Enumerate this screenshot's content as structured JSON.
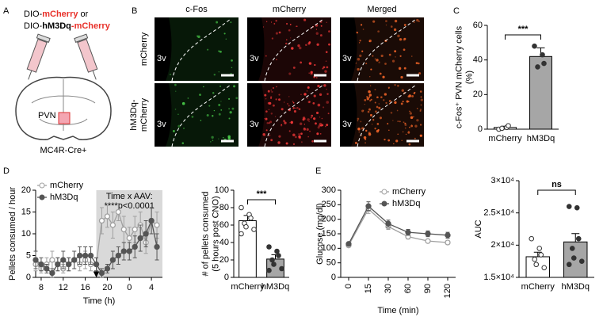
{
  "panel_labels": [
    "A",
    "B",
    "C",
    "D",
    "E"
  ],
  "schematic": {
    "lines": [
      [
        {
          "text": "DIO-",
          "color": "#000000"
        },
        {
          "text": "mCherry",
          "color": "#e8312a",
          "bold": true
        },
        {
          "text": " or",
          "color": "#000000"
        }
      ],
      [
        {
          "text": "DIO-",
          "color": "#000000"
        },
        {
          "text": "hM3Dq",
          "color": "#000000",
          "bold": true
        },
        {
          "text": "-mCherry",
          "color": "#e8312a",
          "bold": true
        }
      ]
    ],
    "region": "PVN",
    "mouse": "MC4R-Cre+"
  },
  "micrographs": {
    "columns": [
      "c-Fos",
      "mCherry",
      "Merged"
    ],
    "rows": [
      [
        "mCherry"
      ],
      [
        "hM3Dq-",
        "mCherry"
      ]
    ],
    "region": "3v"
  },
  "chart_data": [
    {
      "type": "bar",
      "ylabel": [
        "c-Fos⁺ PVN mCherry cells",
        "(%)"
      ],
      "categories": [
        "mCherry",
        "hM3Dq"
      ],
      "values": [
        1,
        42
      ],
      "errors": [
        0.7,
        5
      ],
      "colors": [
        "#ffffff",
        "#a6a6a6"
      ],
      "points": [
        [
          0,
          1,
          2,
          0.5
        ],
        [
          48,
          43,
          38,
          36
        ]
      ],
      "ylim": [
        0,
        60
      ],
      "yticks": [
        0,
        20,
        40,
        60
      ],
      "annotation": "***"
    },
    {
      "type": "line",
      "xlabel": "Time (h)",
      "ylabel": [
        "Pellets consumed / hour"
      ],
      "x": [
        7,
        8,
        9,
        10,
        11,
        12,
        13,
        14,
        15,
        16,
        17,
        18,
        19,
        20,
        21,
        22,
        23,
        24,
        25,
        26,
        27,
        28,
        29
      ],
      "xlim": [
        7,
        30
      ],
      "xticks": [
        8,
        12,
        16,
        20,
        {
          "value": 24,
          "label": "0"
        },
        {
          "value": 28,
          "label": "4"
        }
      ],
      "ylim": [
        0,
        20
      ],
      "yticks": [
        0,
        5,
        10,
        15,
        20
      ],
      "legend": "top-left",
      "shaded_x": [
        18,
        30
      ],
      "annotation": [
        "Time x AAV:",
        "****p<0.0001"
      ],
      "series": [
        {
          "name": "mCherry",
          "color": "#a0a0a0",
          "filled": false,
          "values": [
            3,
            2,
            3,
            4,
            3,
            2,
            3,
            4,
            3,
            4,
            3,
            3,
            13,
            14,
            12,
            15,
            11,
            9,
            11,
            12,
            8,
            13,
            12
          ],
          "errors": [
            1.5,
            1,
            1.5,
            2,
            1.5,
            1,
            1.5,
            2,
            1.5,
            2,
            1.5,
            1.5,
            3,
            2.5,
            3,
            2,
            3,
            2.5,
            3,
            3,
            2.5,
            3,
            3
          ]
        },
        {
          "name": "hM3Dq",
          "color": "#555555",
          "filled": true,
          "values": [
            4,
            3,
            2,
            1,
            3,
            4,
            3,
            4,
            5,
            5,
            5,
            3,
            1,
            2,
            4,
            5,
            6,
            6,
            7,
            9,
            10,
            13,
            7
          ],
          "errors": [
            2,
            1.5,
            1,
            1,
            1.5,
            2,
            1.5,
            2,
            2,
            2,
            2,
            1.5,
            1,
            1,
            2,
            2,
            2,
            2,
            2.5,
            3,
            3,
            3,
            3
          ]
        }
      ]
    },
    {
      "type": "bar",
      "ylabel": [
        "# of pellets consumed",
        "(5 hours post CNO)"
      ],
      "categories": [
        "mCherry",
        "hM3Dq"
      ],
      "values": [
        65,
        21
      ],
      "errors": [
        6,
        5
      ],
      "colors": [
        "#ffffff",
        "#a6a6a6"
      ],
      "points": [
        [
          80,
          72,
          68,
          62,
          58,
          55,
          50
        ],
        [
          35,
          30,
          25,
          20,
          15,
          10,
          8
        ]
      ],
      "ylim": [
        0,
        100
      ],
      "yticks": [
        0,
        20,
        40,
        60,
        80,
        100
      ],
      "annotation": "***"
    },
    {
      "type": "line",
      "xlabel": "Time (min)",
      "ylabel": [
        "Glucose (mg/dl)"
      ],
      "categories": [
        "0",
        "15",
        "30",
        "60",
        "90",
        "120"
      ],
      "ylim": [
        0,
        300
      ],
      "yticks": [
        0,
        50,
        100,
        150,
        200,
        250,
        300
      ],
      "legend": "top-right",
      "series": [
        {
          "name": "mCherry",
          "color": "#a0a0a0",
          "filled": false,
          "values": [
            110,
            235,
            175,
            140,
            125,
            120
          ],
          "errors": [
            5,
            15,
            10,
            8,
            6,
            6
          ]
        },
        {
          "name": "hM3Dq",
          "color": "#555555",
          "filled": true,
          "values": [
            115,
            245,
            185,
            155,
            150,
            145
          ],
          "errors": [
            5,
            15,
            12,
            10,
            10,
            10
          ]
        }
      ]
    },
    {
      "type": "bar",
      "ylabel": [
        "AUC"
      ],
      "categories": [
        "mCherry",
        "hM3Dq"
      ],
      "values": [
        18200,
        20500
      ],
      "errors": [
        700,
        1300
      ],
      "colors": [
        "#ffffff",
        "#a6a6a6"
      ],
      "points": [
        [
          21000,
          19500,
          18500,
          17800,
          17000,
          16500
        ],
        [
          26000,
          25800,
          21000,
          19500,
          18000,
          17500,
          17000
        ]
      ],
      "ylim": [
        15000,
        30000
      ],
      "yticks": [
        {
          "value": 15000,
          "label": "1.5×10⁴"
        },
        {
          "value": 20000,
          "label": "2×10⁴"
        },
        {
          "value": 25000,
          "label": "2.5×10⁴"
        },
        {
          "value": 30000,
          "label": "3×10⁴"
        }
      ],
      "annotation": "ns"
    }
  ]
}
